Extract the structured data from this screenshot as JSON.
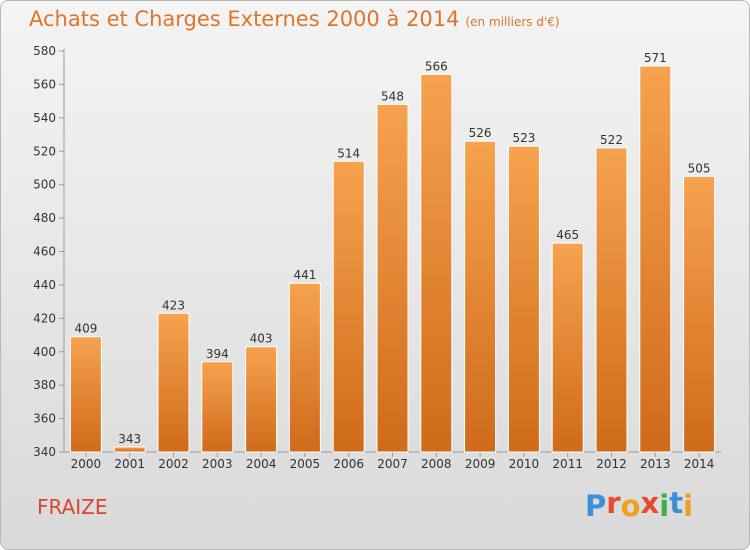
{
  "header": {
    "title": "Achats et Charges Externes 2000 à 2014",
    "subtitle": "(en milliers d'€)"
  },
  "footer": {
    "commune": "FRAIZE",
    "logo": [
      "P",
      "r",
      "o",
      "x",
      "i",
      "t",
      "i"
    ]
  },
  "colors": {
    "bar_top": "#f6a24f",
    "bar_bottom": "#cf6b1a",
    "title": "#e0752a",
    "commune": "#d9452f",
    "logo": [
      "#3c8fd6",
      "#e8492f",
      "#f0a01c",
      "#e8492f",
      "#41ad49",
      "#3c8fd6",
      "#f0a01c"
    ]
  },
  "chart_data": {
    "type": "bar",
    "categories": [
      "2000",
      "2001",
      "2002",
      "2003",
      "2004",
      "2005",
      "2006",
      "2007",
      "2008",
      "2009",
      "2010",
      "2011",
      "2012",
      "2013",
      "2014"
    ],
    "values": [
      409,
      343,
      423,
      394,
      403,
      441,
      514,
      548,
      566,
      526,
      523,
      465,
      522,
      571,
      505
    ],
    "ylim": [
      340,
      580
    ],
    "yticks": [
      340,
      360,
      380,
      400,
      420,
      440,
      460,
      480,
      500,
      520,
      540,
      560,
      580
    ],
    "grid": false
  }
}
